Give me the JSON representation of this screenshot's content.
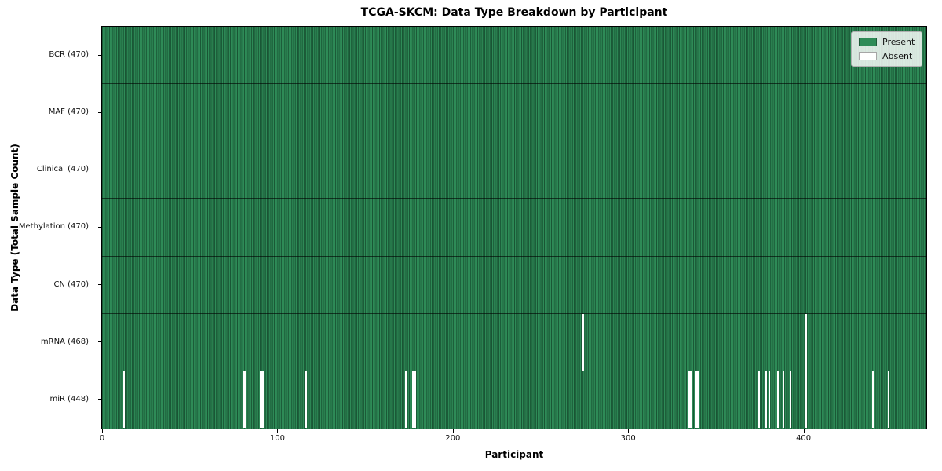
{
  "chart_data": {
    "type": "heatmap",
    "title": "TCGA-SKCM: Data Type Breakdown by Participant",
    "xlabel": "Participant",
    "ylabel": "Data Type (Total Sample Count)",
    "n_participants": 470,
    "x_ticks": [
      0,
      100,
      200,
      300,
      400
    ],
    "legend_position": "upper right",
    "grid": false,
    "colors": {
      "present": "#2e8b57",
      "cell_edge": "#0a2316",
      "absent": "#ffffff",
      "row_separator": "#1a1a1a"
    },
    "legend": [
      {
        "label": "Present",
        "color": "#2e8b57"
      },
      {
        "label": "Absent",
        "color": "#ffffff"
      }
    ],
    "rows": [
      {
        "label": "BCR (470)",
        "data_type": "BCR",
        "total": 470,
        "absent_participants": []
      },
      {
        "label": "MAF (470)",
        "data_type": "MAF",
        "total": 470,
        "absent_participants": []
      },
      {
        "label": "Clinical (470)",
        "data_type": "Clinical",
        "total": 470,
        "absent_participants": []
      },
      {
        "label": "Methylation (470)",
        "data_type": "Methylation",
        "total": 470,
        "absent_participants": []
      },
      {
        "label": "CN (470)",
        "data_type": "CN",
        "total": 470,
        "absent_participants": []
      },
      {
        "label": "mRNA (468)",
        "data_type": "mRNA",
        "total": 468,
        "absent_participants": [
          274,
          401
        ]
      },
      {
        "label": "miR (448)",
        "data_type": "miR",
        "total": 448,
        "absent_participants": [
          12,
          80,
          81,
          90,
          91,
          116,
          173,
          177,
          178,
          334,
          335,
          338,
          339,
          374,
          378,
          380,
          385,
          388,
          392,
          401,
          439,
          448
        ]
      }
    ]
  }
}
